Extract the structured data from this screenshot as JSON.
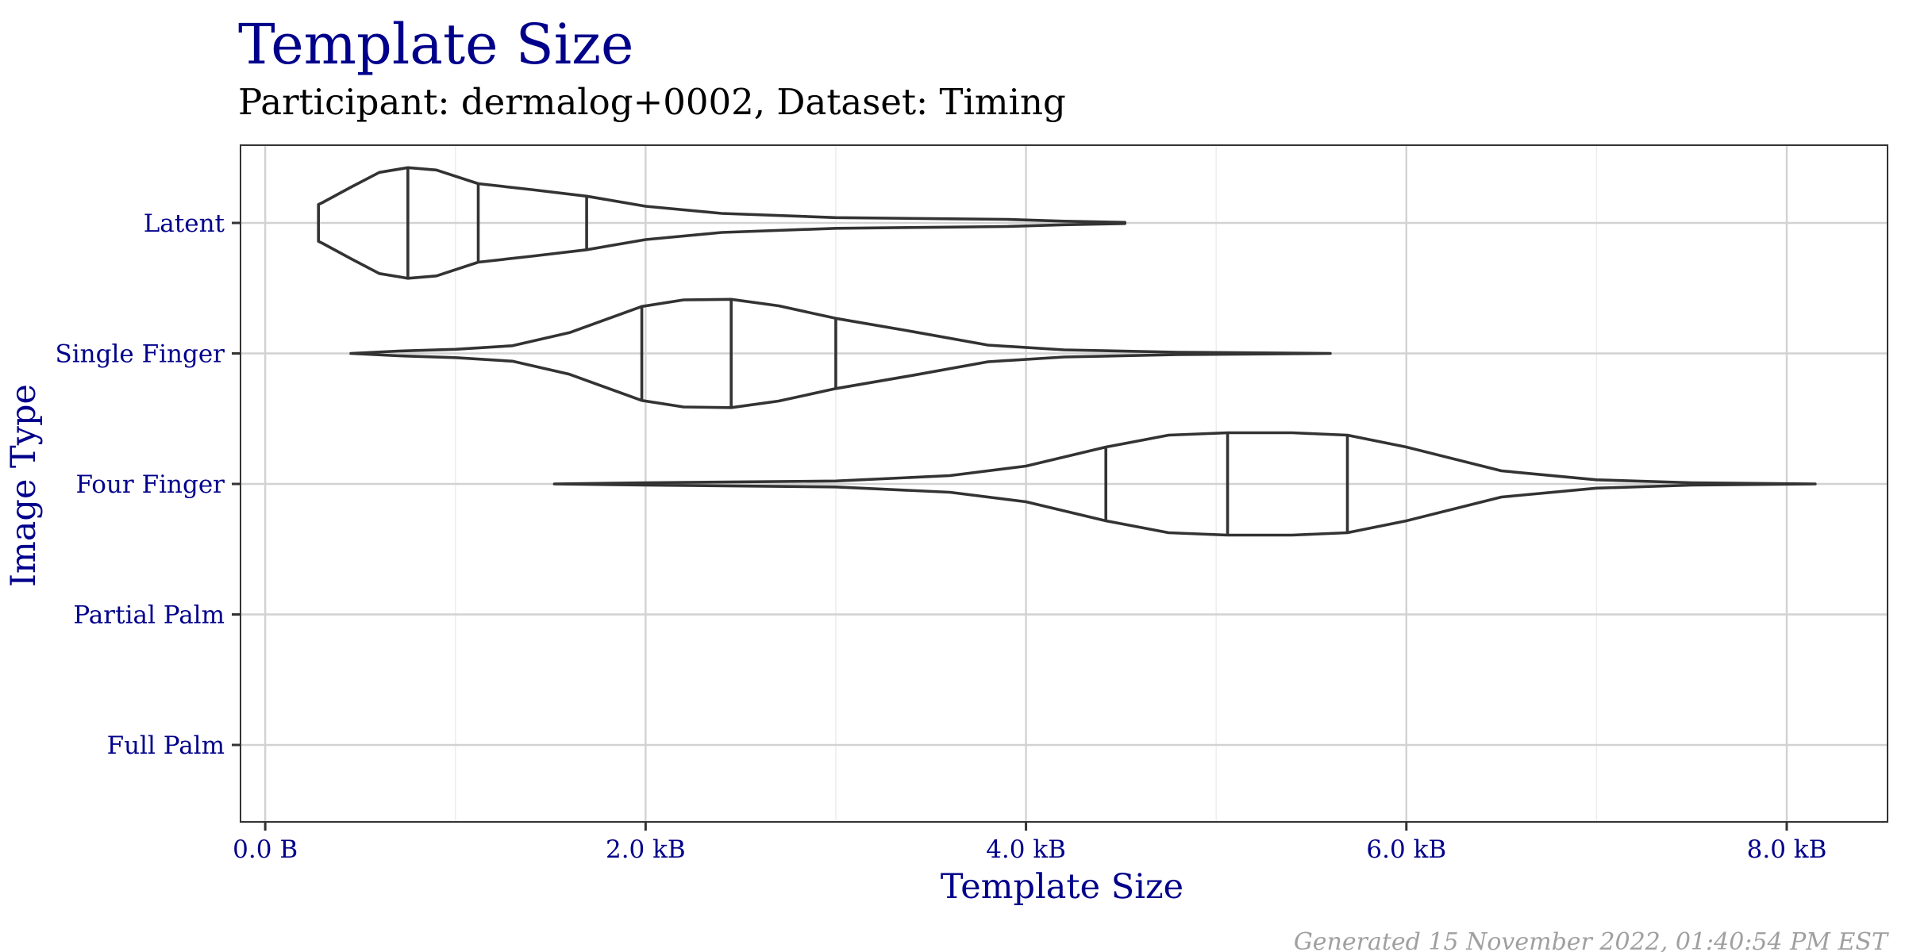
{
  "chart_data": {
    "type": "violin",
    "title": "Template Size",
    "subtitle": "Participant: dermalog+0002, Dataset: Timing",
    "xlabel": "Template Size",
    "ylabel": "Image Type",
    "caption": "Generated 15 November 2022, 01:40:54 PM EST",
    "x_unit": "kB",
    "xlim": [
      -0.13,
      8.53
    ],
    "x_ticks": [
      {
        "value": 0,
        "label": "0.0 B"
      },
      {
        "value": 2,
        "label": "2.0 kB"
      },
      {
        "value": 4,
        "label": "4.0 kB"
      },
      {
        "value": 6,
        "label": "6.0 kB"
      },
      {
        "value": 8,
        "label": "8.0 kB"
      }
    ],
    "x_minor": [
      1,
      3,
      5,
      7
    ],
    "categories": [
      "Latent",
      "Single Finger",
      "Four Finger",
      "Partial Palm",
      "Full Palm"
    ],
    "grid": true,
    "violins": [
      {
        "category": "Latent",
        "min": 0.28,
        "max": 4.52,
        "quantiles": [
          0.75,
          1.12,
          1.69
        ],
        "density": [
          [
            0.28,
            0.31
          ],
          [
            0.3,
            0.34
          ],
          [
            0.45,
            0.6
          ],
          [
            0.6,
            0.85
          ],
          [
            0.75,
            0.93
          ],
          [
            0.9,
            0.89
          ],
          [
            1.12,
            0.66
          ],
          [
            1.4,
            0.56
          ],
          [
            1.69,
            0.45
          ],
          [
            2.0,
            0.28
          ],
          [
            2.4,
            0.16
          ],
          [
            3.0,
            0.09
          ],
          [
            3.6,
            0.07
          ],
          [
            3.9,
            0.06
          ],
          [
            4.2,
            0.03
          ],
          [
            4.52,
            0.01
          ]
        ]
      },
      {
        "category": "Single Finger",
        "min": 0.45,
        "max": 5.6,
        "quantiles": [
          1.98,
          2.45,
          3.0
        ],
        "density": [
          [
            0.45,
            0.0
          ],
          [
            0.7,
            0.04
          ],
          [
            1.0,
            0.07
          ],
          [
            1.3,
            0.13
          ],
          [
            1.6,
            0.35
          ],
          [
            1.98,
            0.79
          ],
          [
            2.2,
            0.9
          ],
          [
            2.45,
            0.91
          ],
          [
            2.7,
            0.8
          ],
          [
            3.0,
            0.59
          ],
          [
            3.4,
            0.37
          ],
          [
            3.8,
            0.14
          ],
          [
            4.2,
            0.06
          ],
          [
            4.8,
            0.02
          ],
          [
            5.6,
            0.0
          ]
        ]
      },
      {
        "category": "Four Finger",
        "min": 1.52,
        "max": 8.15,
        "quantiles": [
          4.42,
          5.06,
          5.69
        ],
        "density": [
          [
            1.52,
            0.0
          ],
          [
            2.0,
            0.02
          ],
          [
            3.0,
            0.05
          ],
          [
            3.6,
            0.14
          ],
          [
            4.0,
            0.3
          ],
          [
            4.42,
            0.62
          ],
          [
            4.75,
            0.82
          ],
          [
            5.06,
            0.86
          ],
          [
            5.4,
            0.86
          ],
          [
            5.69,
            0.82
          ],
          [
            6.0,
            0.62
          ],
          [
            6.5,
            0.22
          ],
          [
            7.0,
            0.07
          ],
          [
            7.5,
            0.02
          ],
          [
            8.15,
            0.0
          ]
        ]
      }
    ]
  }
}
